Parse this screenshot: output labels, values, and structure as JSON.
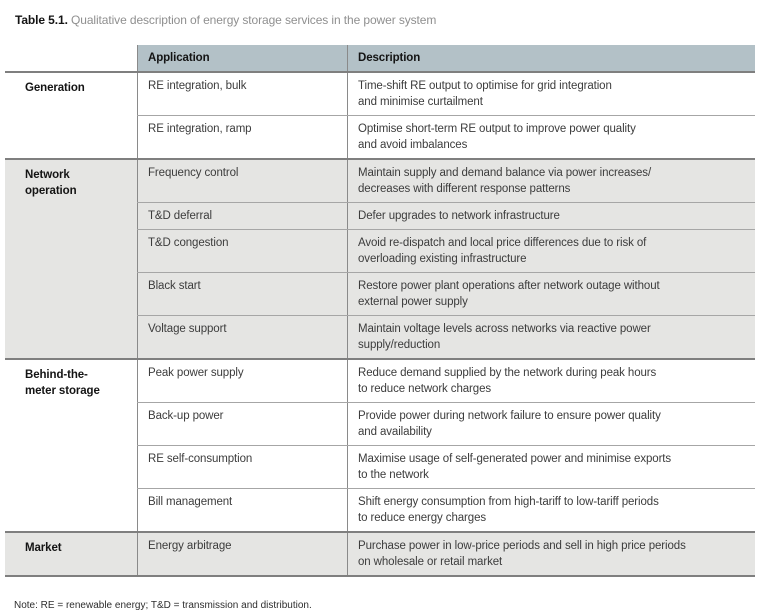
{
  "title": {
    "label": "Table 5.1.",
    "caption": "Qualitative description of energy storage services in the power system"
  },
  "table": {
    "headers": [
      "Application",
      "Description"
    ],
    "sections": [
      {
        "group": "Generation",
        "rows": [
          {
            "application": "RE integration, bulk",
            "description": "Time-shift RE output to optimise for grid integration\nand minimise curtailment"
          },
          {
            "application": "RE integration, ramp",
            "description": "Optimise short-term RE output to improve power quality\nand avoid imbalances"
          }
        ]
      },
      {
        "group": "Network operation",
        "rows": [
          {
            "application": "Frequency control",
            "description": "Maintain supply and demand balance via power increases/\ndecreases with different response patterns"
          },
          {
            "application": "T&D deferral",
            "description": "Defer upgrades to network infrastructure"
          },
          {
            "application": "T&D congestion",
            "description": "Avoid re-dispatch and local price differences due to risk of\noverloading existing infrastructure"
          },
          {
            "application": "Black start",
            "description": "Restore power plant operations after network outage without\nexternal power supply"
          },
          {
            "application": "Voltage support",
            "description": "Maintain voltage levels across networks via reactive power\nsupply/reduction"
          }
        ]
      },
      {
        "group": "Behind-the-meter storage",
        "rows": [
          {
            "application": "Peak power supply",
            "description": "Reduce demand supplied by the network during peak hours\nto reduce network charges"
          },
          {
            "application": "Back-up power",
            "description": "Provide power during network failure to ensure power quality\nand availability"
          },
          {
            "application": "RE self-consumption",
            "description": "Maximise usage of self-generated power and minimise exports\nto the network"
          },
          {
            "application": "Bill management",
            "description": "Shift energy consumption from high-tariff to low-tariff periods\nto reduce energy charges"
          }
        ]
      },
      {
        "group": "Market",
        "rows": [
          {
            "application": "Energy arbitrage",
            "description": "Purchase power in low-price periods and sell in high price periods\non wholesale or retail market"
          }
        ]
      }
    ]
  },
  "note": "Note: RE = renewable energy; T&D = transmission and distribution.",
  "colors": {
    "header_bg": "#b3c1c7",
    "shaded_bg": "#e5e5e3",
    "section_line": "#7f7f7f",
    "row_line": "#a6a6a6",
    "divider_line": "#8a8a8a",
    "text": "#3c3c3c",
    "label_text": "#141414",
    "caption_text": "#8f8f8f"
  }
}
